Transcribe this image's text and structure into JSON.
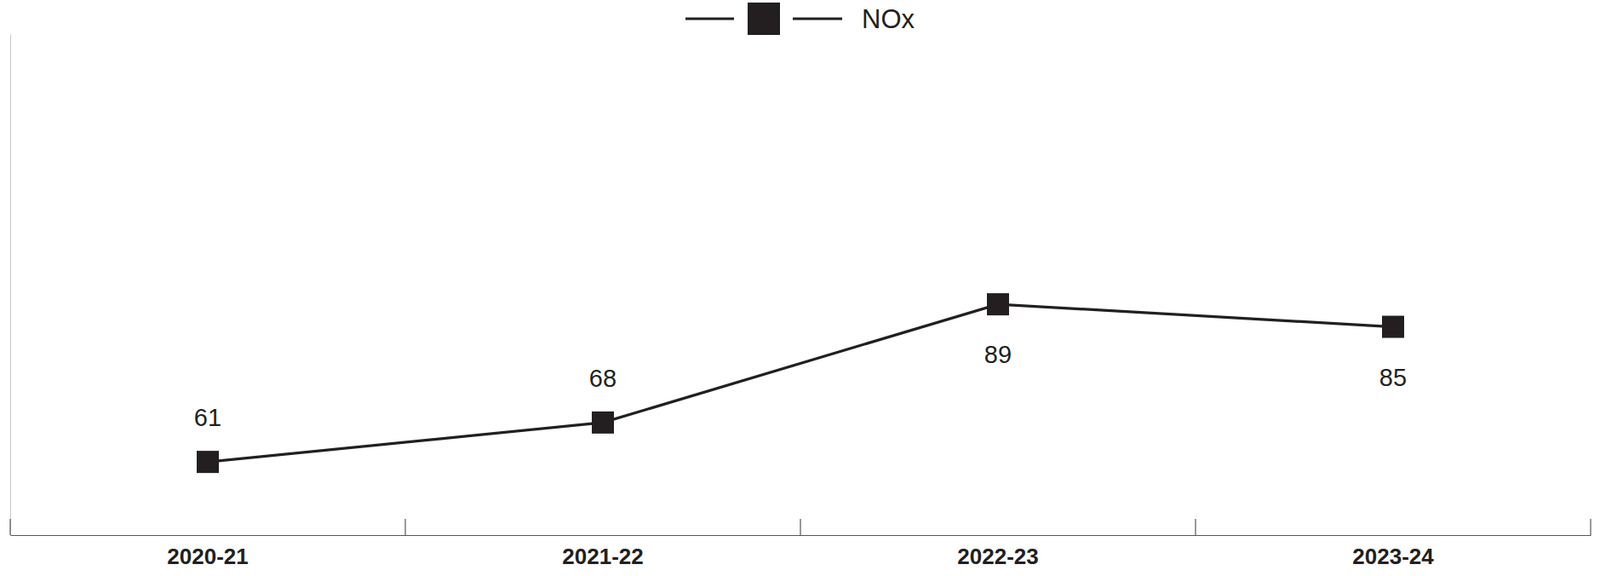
{
  "chart_data": {
    "type": "line",
    "categories": [
      "2020-21",
      "2021-22",
      "2022-23",
      "2023-24"
    ],
    "series": [
      {
        "name": "NOx",
        "color": "#231f20",
        "marker": "square",
        "line_style": "solid",
        "values": [
          61,
          68,
          89,
          85
        ]
      }
    ],
    "ylim": [
      48,
      137
    ],
    "data_labels": true,
    "tick_labels": "x",
    "legend": "top"
  }
}
